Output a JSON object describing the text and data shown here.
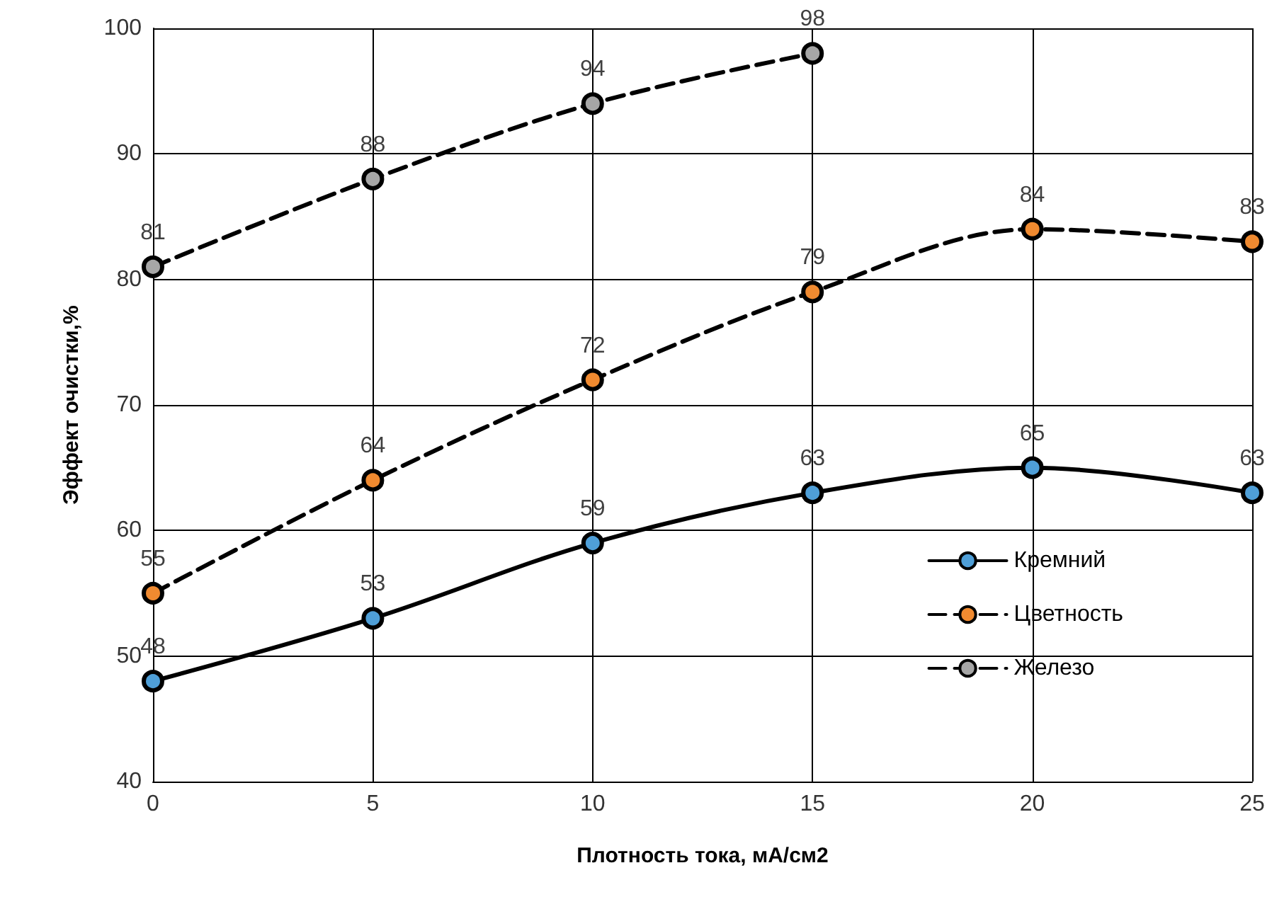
{
  "chart_data": {
    "type": "line",
    "xlabel": "Плотность тока, мА/см2",
    "ylabel": "Эффект очистки,%",
    "x": [
      0,
      5,
      10,
      15,
      20,
      25
    ],
    "series": [
      {
        "name": "Кремний",
        "color": "#4f9fd8",
        "values": [
          48,
          53,
          59,
          63,
          65,
          63
        ],
        "line_style": "solid"
      },
      {
        "name": "Цветность",
        "color": "#f08a30",
        "values": [
          55,
          64,
          72,
          79,
          84,
          83
        ],
        "line_style": "dashed"
      },
      {
        "name": "Железо",
        "color": "#a6a6a6",
        "values": [
          81,
          88,
          94,
          98,
          null,
          null
        ],
        "line_style": "dashed"
      }
    ],
    "xlim": [
      0,
      25
    ],
    "xticks": [
      0,
      5,
      10,
      15,
      20,
      25
    ],
    "ylim": [
      40,
      100
    ],
    "yticks": [
      40,
      50,
      60,
      70,
      80,
      90,
      100
    ],
    "grid": true,
    "legend": "right",
    "marker": "circle",
    "data_labels": true
  }
}
